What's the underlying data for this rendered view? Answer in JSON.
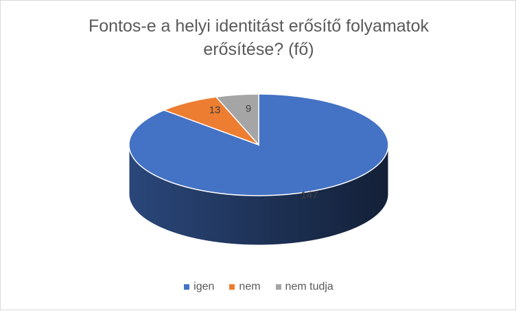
{
  "chart_data": {
    "type": "pie",
    "title_lines": [
      "Fontos-e a helyi identitást erősítő folyamatok",
      "erősítése? (fő)"
    ],
    "categories": [
      "igen",
      "nem",
      "nem tudja"
    ],
    "values": [
      147,
      13,
      9
    ],
    "colors": [
      "#4472C4",
      "#ED7D31",
      "#A5A5A5"
    ],
    "data_labels": [
      "147",
      "13",
      "9"
    ],
    "legend_position": "bottom",
    "style": "3d"
  }
}
